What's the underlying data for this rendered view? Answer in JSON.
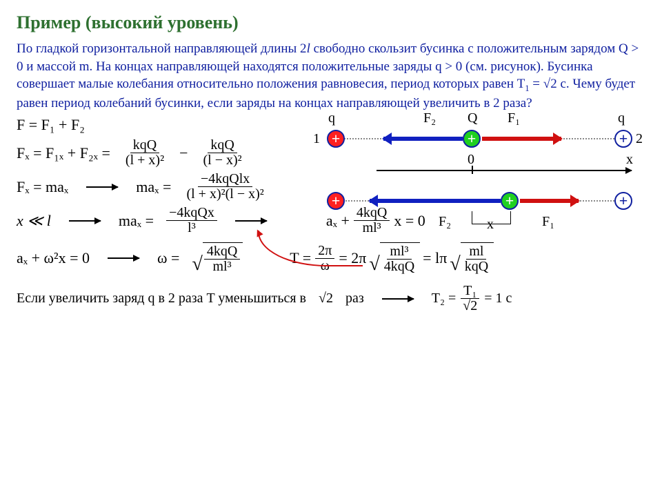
{
  "title": "Пример (высокий уровень)",
  "problem_html": "По гладкой горизонтальной направляющей длины 2<span class='italicvar'>l</span> свободно скользит бусинка с положительным зарядом Q > 0 и массой m. На концах направляющей находятся положительные заряды q > 0 (см. рисунок). Бусинка совершает малые колебания относительно положения равновесия, период которых равен T<sub>1</sub> = <span class='sq'>√2</span> с. Чему будет равен период колебаний бусинки, если заряды на концах направляющей увеличить в 2 раза?",
  "eq1": "F = F₁ + F₂",
  "eq2_lhs": "Fₓ = F₁ₓ + F₂ₓ =",
  "eq2_f1_num": "kqQ",
  "eq2_f1_den": "(l + x)²",
  "eq2_f2_num": "kqQ",
  "eq2_f2_den": "(l − x)²",
  "eq3_lhs": "Fₓ = maₓ",
  "eq3_rhs_l": "maₓ =",
  "eq3_num": "−4kqQlx",
  "eq3_den": "(l + x)²(l − x)²",
  "eq4_cond": "x ≪ l",
  "eq4_rhs_l": "maₓ =",
  "eq4_num": "−4kqQx",
  "eq4_den": "l³",
  "eq4b_l": "aₓ +",
  "eq4b_num": "4kqQ",
  "eq4b_den": "ml³",
  "eq4b_r": "x = 0",
  "eq5_l": "aₓ + ω²x = 0",
  "eq5_rw": "ω =",
  "eq5_num": "4kqQ",
  "eq5_den": "ml³",
  "eq6_l": "T =",
  "eq6_f1num": "2π",
  "eq6_f1den": "ω",
  "eq6_m": "= 2π",
  "eq6_f2num": "ml³",
  "eq6_f2den": "4kqQ",
  "eq6_m2": "= lπ",
  "eq6_f3num": "ml",
  "eq6_f3den": "kqQ",
  "concl_l": "Если увеличить заряд q в 2 раза T уменьшиться в",
  "concl_sq": "√2",
  "concl_r": "раз",
  "concl_eq_l": "T₂ =",
  "concl_eq_num": "T₁",
  "concl_eq_den": "√2",
  "concl_eq_r": "= 1 c",
  "diagram": {
    "labels": {
      "q_left": "q",
      "Q": "Q",
      "q_right": "q",
      "F1": "F₁",
      "F2": "F₂",
      "one": "1",
      "two": "2",
      "zero": "0",
      "x_axis": "x",
      "x_disp": "x"
    },
    "colors": {
      "red": "#ff2020",
      "green": "#20d020",
      "blue_border": "#1020a0",
      "vec_blue": "#1020c0",
      "vec_red": "#d01010",
      "dot": "#888888"
    }
  }
}
